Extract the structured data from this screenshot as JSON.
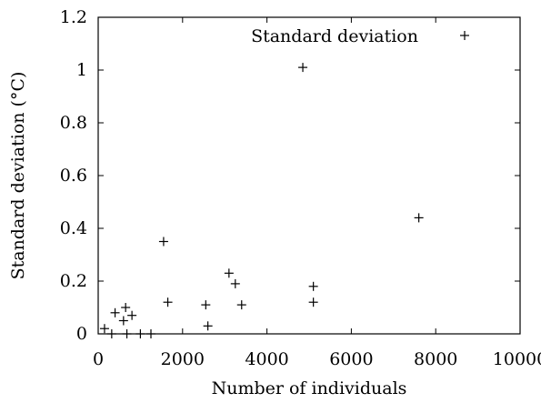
{
  "chart_data": {
    "type": "scatter",
    "xlabel": "Number of individuals",
    "ylabel": "Standard deviation (°C)",
    "xlim": [
      0,
      10000
    ],
    "ylim": [
      0,
      1.2
    ],
    "x_ticks": [
      0,
      2000,
      4000,
      6000,
      8000,
      10000
    ],
    "y_ticks": [
      0,
      0.2,
      0.4,
      0.6,
      0.8,
      1,
      1.2
    ],
    "x_tick_labels": [
      "0",
      "2000",
      "4000",
      "6000",
      "8000",
      "10000"
    ],
    "y_tick_labels": [
      "0",
      "0.2",
      "0.4",
      "0.6",
      "0.8",
      "1",
      "1.2"
    ],
    "grid": false,
    "legend_position": "top-right",
    "series": [
      {
        "name": "Standard deviation",
        "marker": "+",
        "color": "#000000",
        "points": [
          {
            "x": 150,
            "y": 0.02
          },
          {
            "x": 320,
            "y": 0.0
          },
          {
            "x": 400,
            "y": 0.08
          },
          {
            "x": 600,
            "y": 0.05
          },
          {
            "x": 650,
            "y": 0.1
          },
          {
            "x": 680,
            "y": 0.0
          },
          {
            "x": 800,
            "y": 0.07
          },
          {
            "x": 1000,
            "y": 0.0
          },
          {
            "x": 1250,
            "y": 0.0
          },
          {
            "x": 1550,
            "y": 0.35
          },
          {
            "x": 1650,
            "y": 0.12
          },
          {
            "x": 2550,
            "y": 0.11
          },
          {
            "x": 2600,
            "y": 0.03
          },
          {
            "x": 3100,
            "y": 0.23
          },
          {
            "x": 3250,
            "y": 0.19
          },
          {
            "x": 3400,
            "y": 0.11
          },
          {
            "x": 4850,
            "y": 1.01
          },
          {
            "x": 5100,
            "y": 0.18
          },
          {
            "x": 5100,
            "y": 0.12
          },
          {
            "x": 7600,
            "y": 0.44
          }
        ]
      }
    ]
  }
}
